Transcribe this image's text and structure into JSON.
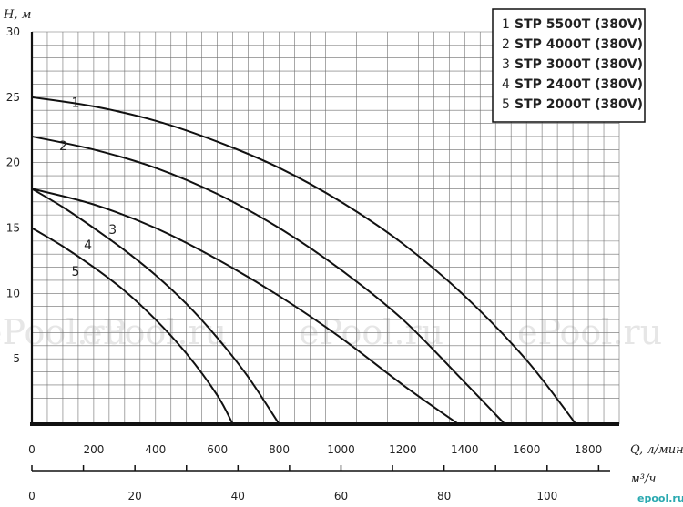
{
  "chart_data": {
    "type": "line",
    "title": "",
    "ylabel": "H, м",
    "xlabel": "Q, л/мин",
    "xlabel_secondary": "м³/ч",
    "xlim": [
      0,
      1900
    ],
    "ylim": [
      0,
      30
    ],
    "x_ticks": [
      "0",
      "200",
      "400",
      "600",
      "800",
      "1000",
      "1200",
      "1400",
      "1600",
      "1800"
    ],
    "y_ticks": [
      "5",
      "10",
      "15",
      "20",
      "25",
      "30"
    ],
    "secondary_x_ticks": [
      "0",
      "20",
      "40",
      "60",
      "80",
      "100"
    ],
    "grid": true,
    "legend_position": "top-right",
    "series": [
      {
        "name": "STP 5500T (380V)",
        "num": "1",
        "x": [
          0,
          200,
          400,
          600,
          800,
          1000,
          1200,
          1400,
          1600,
          1760
        ],
        "y": [
          25,
          24.3,
          23.2,
          21.6,
          19.6,
          17.0,
          13.8,
          9.8,
          4.9,
          0
        ]
      },
      {
        "name": "STP 4000T (380V)",
        "num": "2",
        "x": [
          0,
          200,
          400,
          600,
          800,
          1000,
          1200,
          1400,
          1530
        ],
        "y": [
          22,
          21.0,
          19.6,
          17.6,
          15.0,
          11.8,
          8.0,
          3.2,
          0
        ]
      },
      {
        "name": "STP 3000T (380V)",
        "num": "3",
        "x": [
          0,
          200,
          400,
          600,
          800,
          1000,
          1200,
          1380
        ],
        "y": [
          18,
          16.8,
          15.0,
          12.6,
          9.8,
          6.6,
          3.0,
          0
        ]
      },
      {
        "name": "STP 2400T (380V)",
        "num": "4",
        "x": [
          0,
          100,
          200,
          300,
          400,
          500,
          600,
          700,
          800
        ],
        "y": [
          18,
          16.6,
          15.0,
          13.3,
          11.4,
          9.2,
          6.6,
          3.6,
          0
        ]
      },
      {
        "name": "STP 2000T (380V)",
        "num": "5",
        "x": [
          0,
          100,
          200,
          300,
          400,
          500,
          600,
          650
        ],
        "y": [
          15,
          13.6,
          12.0,
          10.2,
          8.0,
          5.4,
          2.2,
          0
        ]
      }
    ]
  },
  "watermark": "ePool.ru",
  "corner_mark": "epool.ru"
}
